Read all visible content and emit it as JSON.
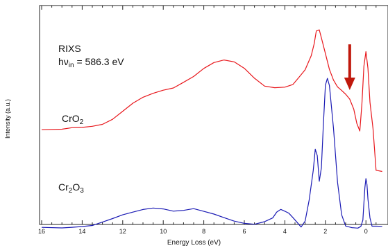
{
  "chart_data": {
    "type": "line",
    "title": "",
    "xlabel": "Energy Loss (eV)",
    "ylabel": "Intensity (a.u.)",
    "xlim": [
      16,
      -0.8
    ],
    "x_reversed": true,
    "x_ticks": [
      16,
      14,
      12,
      10,
      8,
      6,
      4,
      2,
      0
    ],
    "y_ticks_shown": false,
    "grid": false,
    "legend": "none",
    "annotations": {
      "experiment": "RIXS",
      "excitation_prefix": "hν",
      "excitation_sub": "in",
      "excitation_value": " = 586.3 eV",
      "arrow_at_energy": 0.8,
      "arrow_color": "#c0180c"
    },
    "series": [
      {
        "name": "CrO2",
        "label_parts": [
          "CrO",
          "2",
          ""
        ],
        "color": "#e8161b",
        "x": [
          16,
          15,
          14.5,
          14,
          13.5,
          13,
          12.5,
          12,
          11.5,
          11,
          10.5,
          10,
          9.5,
          9,
          8.5,
          8,
          7.5,
          7,
          6.5,
          6,
          5.5,
          5,
          4.5,
          4,
          3.6,
          3.3,
          3.0,
          2.7,
          2.55,
          2.45,
          2.3,
          2.2,
          2.0,
          1.8,
          1.6,
          1.4,
          1.2,
          1.0,
          0.8,
          0.6,
          0.45,
          0.3,
          0.2,
          0.1,
          0.0,
          -0.1,
          -0.2,
          -0.35,
          -0.5,
          -0.8
        ],
        "y": [
          0.05,
          0.05,
          0.06,
          0.06,
          0.07,
          0.09,
          0.14,
          0.22,
          0.3,
          0.36,
          0.4,
          0.43,
          0.45,
          0.5,
          0.55,
          0.62,
          0.67,
          0.69,
          0.67,
          0.61,
          0.52,
          0.45,
          0.44,
          0.45,
          0.48,
          0.55,
          0.62,
          0.75,
          0.86,
          0.97,
          0.98,
          0.9,
          0.75,
          0.6,
          0.5,
          0.44,
          0.41,
          0.38,
          0.34,
          0.25,
          0.12,
          0.05,
          0.3,
          0.65,
          0.78,
          0.62,
          0.3,
          0.05,
          -0.34,
          -0.35
        ]
      },
      {
        "name": "Cr2O3",
        "label_parts": [
          "Cr",
          "2",
          "O",
          "3"
        ],
        "color": "#1a1ab4",
        "x": [
          16,
          15,
          14.5,
          14,
          13.5,
          13,
          12.5,
          12,
          11.5,
          11,
          10.5,
          10,
          9.5,
          9,
          8.5,
          8,
          7.5,
          7,
          6.5,
          6,
          5.5,
          5,
          4.6,
          4.4,
          4.2,
          4.0,
          3.8,
          3.6,
          3.4,
          3.2,
          3.0,
          2.8,
          2.6,
          2.5,
          2.4,
          2.3,
          2.2,
          2.1,
          2.0,
          1.9,
          1.8,
          1.6,
          1.4,
          1.2,
          1.0,
          0.7,
          0.4,
          0.25,
          0.15,
          0.1,
          0.05,
          0.0,
          -0.05,
          -0.1,
          -0.2,
          -0.3,
          -0.5,
          -0.8
        ],
        "y": [
          -0.86,
          -0.86,
          -0.85,
          -0.84,
          -0.83,
          -0.8,
          -0.77,
          -0.74,
          -0.72,
          -0.7,
          -0.69,
          -0.7,
          -0.72,
          -0.71,
          -0.69,
          -0.71,
          -0.73,
          -0.76,
          -0.79,
          -0.81,
          -0.82,
          -0.8,
          -0.77,
          -0.72,
          -0.7,
          -0.72,
          -0.74,
          -0.78,
          -0.82,
          -0.86,
          -0.8,
          -0.6,
          -0.32,
          -0.12,
          -0.18,
          -0.42,
          -0.3,
          0.1,
          0.46,
          0.52,
          0.45,
          0.05,
          -0.45,
          -0.75,
          -0.85,
          -0.86,
          -0.86,
          -0.84,
          -0.78,
          -0.62,
          -0.48,
          -0.4,
          -0.46,
          -0.6,
          -0.78,
          -0.86,
          -0.86,
          -0.86
        ]
      }
    ]
  }
}
